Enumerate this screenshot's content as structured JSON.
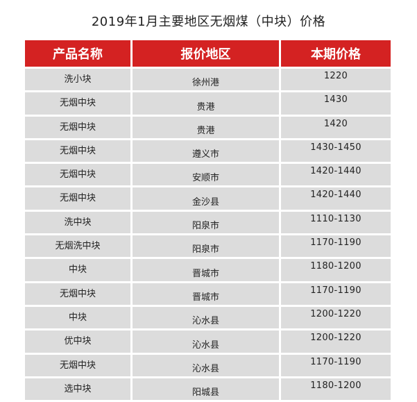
{
  "title": "2019年1月主要地区无烟煤（中块）价格",
  "table": {
    "headers": [
      "产品名称",
      "报价地区",
      "本期价格"
    ],
    "rows": [
      [
        "洗小块",
        "徐州港",
        "1220"
      ],
      [
        "无烟中块",
        "贵港",
        "1430"
      ],
      [
        "无烟中块",
        "贵港",
        "1420"
      ],
      [
        "无烟中块",
        "遵义市",
        "1430-1450"
      ],
      [
        "无烟中块",
        "安顺市",
        "1420-1440"
      ],
      [
        "无烟中块",
        "金沙县",
        "1420-1440"
      ],
      [
        "洗中块",
        "阳泉市",
        "1110-1130"
      ],
      [
        "无烟洗中块",
        "阳泉市",
        "1170-1190"
      ],
      [
        "中块",
        "晋城市",
        "1180-1200"
      ],
      [
        "无烟中块",
        "晋城市",
        "1170-1190"
      ],
      [
        "中块",
        "沁水县",
        "1200-1220"
      ],
      [
        "优中块",
        "沁水县",
        "1200-1220"
      ],
      [
        "无烟中块",
        "沁水县",
        "1170-1190"
      ],
      [
        "选中块",
        "阳城县",
        "1180-1200"
      ]
    ]
  }
}
